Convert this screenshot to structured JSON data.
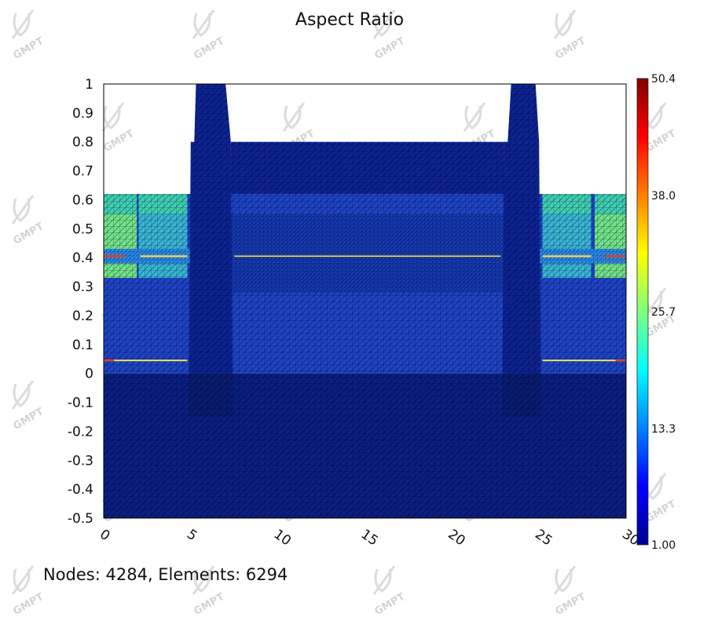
{
  "chart_data": {
    "type": "heatmap",
    "title": "Aspect Ratio",
    "xlabel": "",
    "ylabel": "",
    "xlim": [
      0,
      30
    ],
    "ylim": [
      -0.5,
      1
    ],
    "x_ticks": [
      "0",
      "5",
      "10",
      "15",
      "20",
      "25",
      "30"
    ],
    "y_ticks": [
      "1",
      "0.9",
      "0.8",
      "0.7",
      "0.6",
      "0.5",
      "0.4",
      "0.3",
      "0.2",
      "0.1",
      "0",
      "-0.1",
      "-0.2",
      "-0.3",
      "-0.4",
      "-0.5"
    ],
    "colorbar": {
      "min": 1.0,
      "max": 50.4,
      "labels": [
        "50.4",
        "38.0",
        "25.7",
        "13.3",
        "1.00"
      ],
      "colormap": "jet"
    },
    "footer": "Nodes: 4284, Elements: 6294",
    "watermark": "GMPT",
    "colors": {
      "substrate": "#0b1f86",
      "main_layer": "#1e44c8",
      "fin": "#0d2496",
      "side_cyan": "#3fd0b4",
      "side_green": "#72e48c",
      "band_light": "#2c8cf0",
      "line_yellow": "#f2e24a",
      "line_red": "#e53e1a",
      "mesh": "#000000"
    }
  }
}
